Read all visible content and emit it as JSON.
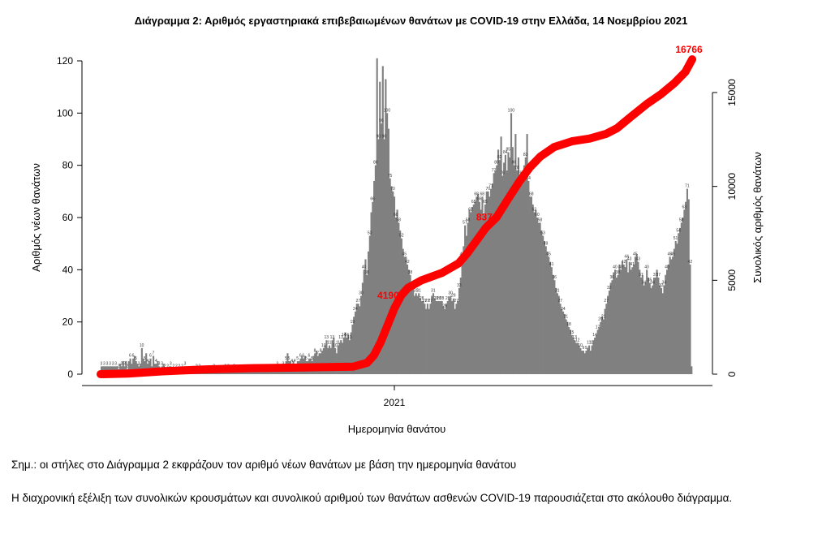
{
  "chart_data": {
    "type": "bar",
    "title": "Διάγραμμα 2: Αριθμός εργαστηριακά επιβεβαιωμένων θανάτων με COVID-19 στην Ελλάδα, 14 Νοεμβρίου 2021",
    "xlabel": "Ημερομηνία θανάτου",
    "ylabel": "Αριθμός νέων θανάτων",
    "y2label": "Συνολικός αριθμός θανάτων",
    "x_tick_labels": [
      "2021"
    ],
    "ylim": [
      0,
      125
    ],
    "y_ticks": [
      0,
      20,
      40,
      60,
      80,
      100,
      120
    ],
    "y2lim": [
      0,
      17000
    ],
    "y2_ticks": [
      0,
      5000,
      10000,
      15000
    ],
    "series": [
      {
        "kind": "bar",
        "color": "#808080",
        "values": [
          3,
          3,
          3,
          3,
          3,
          3,
          3,
          3,
          3,
          3,
          3,
          3,
          2,
          4,
          3,
          5,
          3,
          5,
          2,
          5,
          6,
          4,
          6,
          7,
          5,
          4,
          3,
          4,
          10,
          6,
          5,
          8,
          4,
          5,
          6,
          3,
          7,
          4,
          4,
          5,
          3,
          2,
          3,
          4,
          2,
          2,
          2,
          3,
          3,
          2,
          2,
          2,
          2,
          2,
          2,
          3,
          2,
          2,
          3,
          3,
          1,
          1,
          1,
          1,
          1,
          1,
          2,
          1,
          2,
          1,
          1,
          1,
          1,
          1,
          1,
          1,
          1,
          1,
          2,
          1,
          1,
          1,
          1,
          1,
          1,
          1,
          2,
          1,
          2,
          1,
          1,
          1,
          2,
          1,
          1,
          2,
          1,
          2,
          1,
          1,
          1,
          1,
          1,
          1,
          1,
          1,
          2,
          1,
          1,
          1,
          2,
          1,
          1,
          2,
          1,
          1,
          2,
          2,
          2,
          2,
          2,
          2,
          3,
          2,
          2,
          3,
          3,
          4,
          5,
          8,
          5,
          5,
          4,
          5,
          4,
          3,
          5,
          5,
          6,
          7,
          6,
          7,
          5,
          5,
          6,
          6,
          5,
          7,
          8,
          9,
          7,
          8,
          8,
          9,
          10,
          11,
          13,
          10,
          11,
          10,
          13,
          14,
          10,
          8,
          11,
          12,
          13,
          12,
          14,
          16,
          14,
          15,
          13,
          16,
          19,
          22,
          24,
          27,
          27,
          26,
          30,
          35,
          40,
          44,
          38,
          47,
          53,
          62,
          66,
          74,
          80,
          121,
          90,
          112,
          96,
          118,
          90,
          113,
          100,
          94,
          75,
          72,
          70,
          68,
          60,
          63,
          58,
          55,
          52,
          48,
          45,
          45,
          42,
          40,
          38,
          34,
          33,
          30,
          31,
          30,
          31,
          29,
          28,
          28,
          27,
          25,
          27,
          25,
          27,
          30,
          31,
          29,
          28,
          28,
          28,
          28,
          28,
          26,
          25,
          27,
          28,
          29,
          30,
          28,
          29,
          25,
          27,
          28,
          33,
          37,
          45,
          49,
          57,
          53,
          58,
          63,
          62,
          64,
          65,
          66,
          68,
          69,
          66,
          63,
          68,
          61,
          65,
          70,
          70,
          68,
          71,
          73,
          77,
          78,
          80,
          86,
          82,
          91,
          76,
          81,
          84,
          78,
          85,
          83,
          100,
          87,
          80,
          92,
          78,
          83,
          76,
          77,
          73,
          80,
          83,
          92,
          74,
          68,
          68,
          65,
          62,
          63,
          60,
          58,
          58,
          55,
          53,
          51,
          49,
          47,
          45,
          43,
          41,
          38,
          36,
          33,
          31,
          30,
          27,
          25,
          24,
          23,
          21,
          20,
          18,
          17,
          15,
          14,
          13,
          12,
          12,
          11,
          10,
          9,
          9,
          8,
          9,
          10,
          11,
          9,
          11,
          13,
          14,
          15,
          17,
          18,
          20,
          22,
          21,
          25,
          27,
          30,
          32,
          35,
          36,
          39,
          40,
          37,
          38,
          42,
          40,
          43,
          42,
          41,
          44,
          39,
          43,
          40,
          41,
          42,
          45,
          46,
          43,
          40,
          37,
          38,
          34,
          35,
          40,
          37,
          35,
          33,
          34,
          37,
          37,
          40,
          37,
          34,
          33,
          31,
          34,
          38,
          40,
          42,
          45,
          44,
          45,
          48,
          51,
          50,
          54,
          56,
          58,
          60,
          63,
          66,
          71,
          67,
          42,
          3
        ]
      },
      {
        "kind": "line",
        "color": "#ff0000",
        "axis": "right",
        "points": [
          [
            0,
            0
          ],
          [
            20,
            30
          ],
          [
            45,
            150
          ],
          [
            75,
            250
          ],
          [
            110,
            320
          ],
          [
            150,
            360
          ],
          [
            185,
            400
          ],
          [
            195,
            600
          ],
          [
            200,
            1000
          ],
          [
            205,
            1700
          ],
          [
            210,
            2600
          ],
          [
            215,
            3500
          ],
          [
            220,
            4190
          ],
          [
            225,
            4600
          ],
          [
            235,
            5000
          ],
          [
            250,
            5400
          ],
          [
            262,
            5900
          ],
          [
            268,
            6400
          ],
          [
            275,
            7100
          ],
          [
            282,
            7800
          ],
          [
            290,
            8370
          ],
          [
            298,
            9300
          ],
          [
            306,
            10200
          ],
          [
            314,
            11000
          ],
          [
            322,
            11600
          ],
          [
            332,
            12100
          ],
          [
            345,
            12400
          ],
          [
            358,
            12550
          ],
          [
            370,
            12800
          ],
          [
            378,
            13100
          ],
          [
            388,
            13700
          ],
          [
            400,
            14400
          ],
          [
            410,
            14900
          ],
          [
            420,
            15500
          ],
          [
            428,
            16100
          ],
          [
            433,
            16766
          ]
        ]
      }
    ],
    "labels_on_line": [
      "4190",
      "8370",
      "16766"
    ]
  },
  "notes": {
    "note1": "Σημ.: οι στήλες στο Διάγραμμα 2 εκφράζουν τον αριθμό νέων θανάτων με βάση την ημερομηνία θανάτου",
    "note2": "Η διαχρονική εξέλιξη των συνολικών κρουσμάτων και συνολικού αριθμού των θανάτων ασθενών COVID-19 παρουσιάζεται στο ακόλουθο διάγραμμα."
  }
}
